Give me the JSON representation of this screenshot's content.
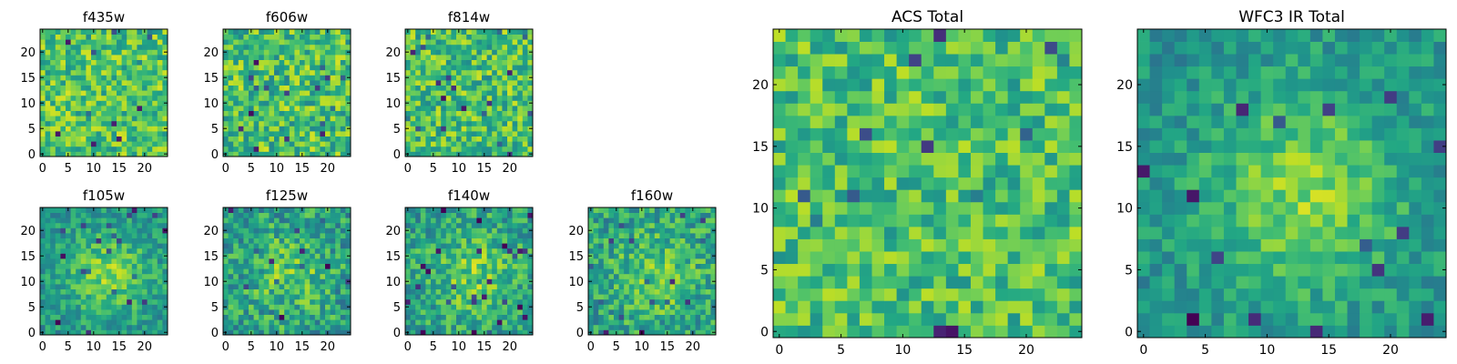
{
  "chart_data": [
    {
      "type": "heatmap",
      "title": "f435w",
      "grid_size": 25,
      "xticks": [
        "0",
        "5",
        "10",
        "15",
        "20"
      ],
      "yticks": [
        "0",
        "5",
        "10",
        "15",
        "20"
      ],
      "mean": 0.72,
      "blob": 0.0,
      "noise": 0.22,
      "seed": 11
    },
    {
      "type": "heatmap",
      "title": "f606w",
      "grid_size": 25,
      "xticks": [
        "0",
        "5",
        "10",
        "15",
        "20"
      ],
      "yticks": [
        "0",
        "5",
        "10",
        "15",
        "20"
      ],
      "mean": 0.7,
      "blob": 0.0,
      "noise": 0.24,
      "seed": 23
    },
    {
      "type": "heatmap",
      "title": "f814w",
      "grid_size": 25,
      "xticks": [
        "0",
        "5",
        "10",
        "15",
        "20"
      ],
      "yticks": [
        "0",
        "5",
        "10",
        "15",
        "20"
      ],
      "mean": 0.7,
      "blob": 0.0,
      "noise": 0.23,
      "seed": 37
    },
    {
      "type": "heatmap",
      "title": "f105w",
      "grid_size": 25,
      "xticks": [
        "0",
        "5",
        "10",
        "15",
        "20"
      ],
      "yticks": [
        "0",
        "5",
        "10",
        "15",
        "20"
      ],
      "mean": 0.62,
      "blob": 0.28,
      "noise": 0.16,
      "seed": 41
    },
    {
      "type": "heatmap",
      "title": "f125w",
      "grid_size": 25,
      "xticks": [
        "0",
        "5",
        "10",
        "15",
        "20"
      ],
      "yticks": [
        "0",
        "5",
        "10",
        "15",
        "20"
      ],
      "mean": 0.62,
      "blob": 0.18,
      "noise": 0.22,
      "seed": 53
    },
    {
      "type": "heatmap",
      "title": "f140w",
      "grid_size": 25,
      "xticks": [
        "0",
        "5",
        "10",
        "15",
        "20"
      ],
      "yticks": [
        "0",
        "5",
        "10",
        "15",
        "20"
      ],
      "mean": 0.64,
      "blob": 0.2,
      "noise": 0.2,
      "seed": 67
    },
    {
      "type": "heatmap",
      "title": "f160w",
      "grid_size": 25,
      "xticks": [
        "0",
        "5",
        "10",
        "15",
        "20"
      ],
      "yticks": [
        "0",
        "5",
        "10",
        "15",
        "20"
      ],
      "mean": 0.64,
      "blob": 0.18,
      "noise": 0.21,
      "seed": 79
    },
    {
      "type": "heatmap",
      "title": "ACS Total",
      "grid_size": 25,
      "xticks": [
        "0",
        "5",
        "10",
        "15",
        "20"
      ],
      "yticks": [
        "0",
        "5",
        "10",
        "15",
        "20"
      ],
      "mean": 0.7,
      "blob": 0.0,
      "noise": 0.2,
      "seed": 97
    },
    {
      "type": "heatmap",
      "title": "WFC3 IR Total",
      "grid_size": 25,
      "xticks": [
        "0",
        "5",
        "10",
        "15",
        "20"
      ],
      "yticks": [
        "0",
        "5",
        "10",
        "15",
        "20"
      ],
      "mean": 0.62,
      "blob": 0.3,
      "noise": 0.14,
      "seed": 131
    }
  ]
}
